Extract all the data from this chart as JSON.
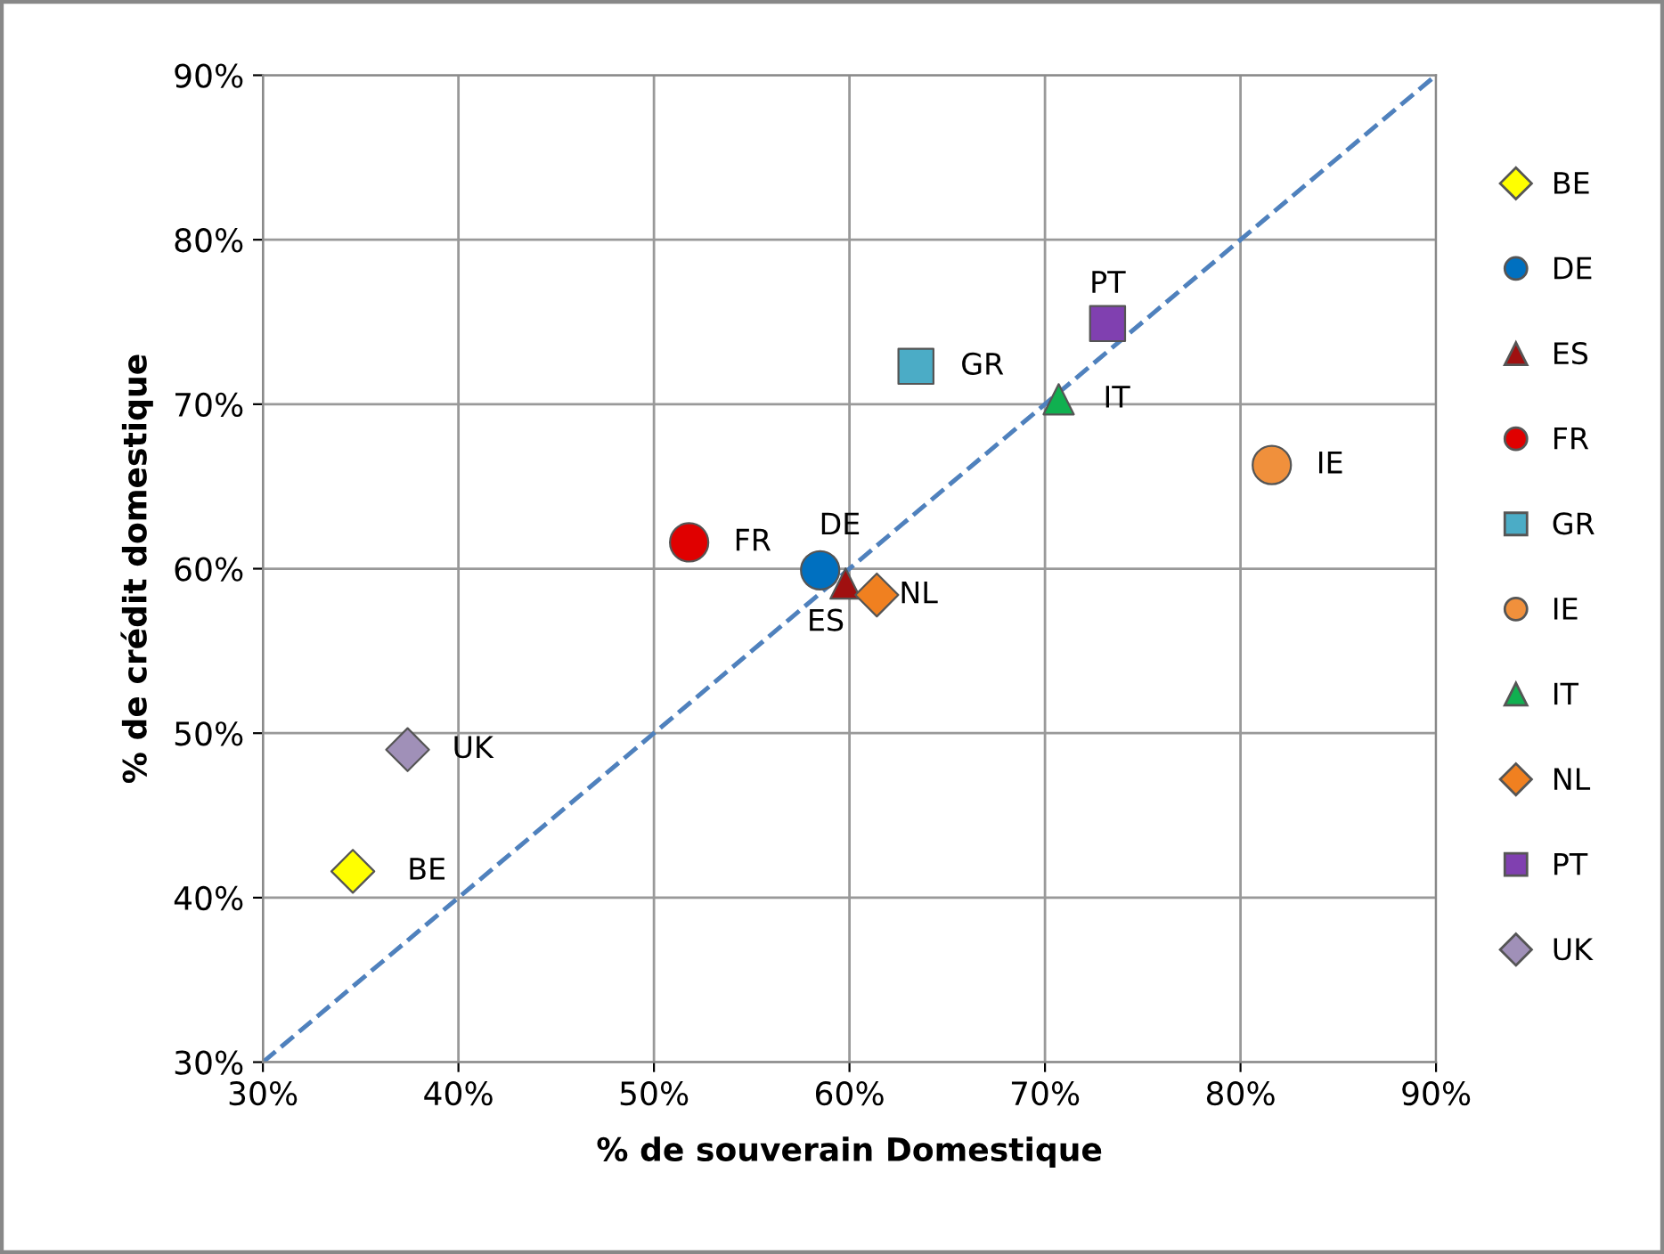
{
  "chart_data": {
    "type": "scatter",
    "xlabel": "% de souverain Domestique",
    "ylabel": "% de crédit domestique",
    "xlim": [
      30,
      90
    ],
    "ylim": [
      30,
      90
    ],
    "xticks": [
      {
        "value": 30,
        "label": "30%"
      },
      {
        "value": 40,
        "label": "40%"
      },
      {
        "value": 50,
        "label": "50%"
      },
      {
        "value": 60,
        "label": "60%"
      },
      {
        "value": 70,
        "label": "70%"
      },
      {
        "value": 80,
        "label": "80%"
      },
      {
        "value": 90,
        "label": "90%"
      }
    ],
    "yticks": [
      {
        "value": 30,
        "label": "30%"
      },
      {
        "value": 40,
        "label": "40%"
      },
      {
        "value": 50,
        "label": "50%"
      },
      {
        "value": 60,
        "label": "60%"
      },
      {
        "value": 70,
        "label": "70%"
      },
      {
        "value": 80,
        "label": "80%"
      },
      {
        "value": 90,
        "label": "90%"
      }
    ],
    "grid": true,
    "legend": "right",
    "series": [
      {
        "name": "BE",
        "color": "#ffff00",
        "marker": "diamond",
        "x": [
          34.6
        ],
        "values": [
          41.6
        ]
      },
      {
        "name": "DE",
        "color": "#0070c0",
        "marker": "circle",
        "x": [
          58.5
        ],
        "values": [
          59.9
        ]
      },
      {
        "name": "ES",
        "color": "#a01010",
        "marker": "triangle",
        "x": [
          59.8
        ],
        "values": [
          59.1
        ]
      },
      {
        "name": "FR",
        "color": "#e00000",
        "marker": "circle",
        "x": [
          51.8
        ],
        "values": [
          61.6
        ]
      },
      {
        "name": "GR",
        "color": "#4bacc6",
        "marker": "square",
        "x": [
          63.4
        ],
        "values": [
          72.3
        ]
      },
      {
        "name": "IE",
        "color": "#f0903c",
        "marker": "circle",
        "x": [
          81.6
        ],
        "values": [
          66.3
        ]
      },
      {
        "name": "IT",
        "color": "#10b050",
        "marker": "triangle",
        "x": [
          70.7
        ],
        "values": [
          70.3
        ]
      },
      {
        "name": "NL",
        "color": "#f08020",
        "marker": "diamond",
        "x": [
          61.4
        ],
        "values": [
          58.4
        ]
      },
      {
        "name": "PT",
        "color": "#8040b0",
        "marker": "square",
        "x": [
          73.2
        ],
        "values": [
          74.9
        ]
      },
      {
        "name": "UK",
        "color": "#a090b8",
        "marker": "diamond",
        "x": [
          37.4
        ],
        "values": [
          49.0
        ]
      },
      {
        "type": "line",
        "color": "#4f81bd",
        "line_style": "dashed",
        "marker": "none",
        "x": [
          30,
          90
        ],
        "values": [
          30,
          90
        ]
      }
    ]
  }
}
